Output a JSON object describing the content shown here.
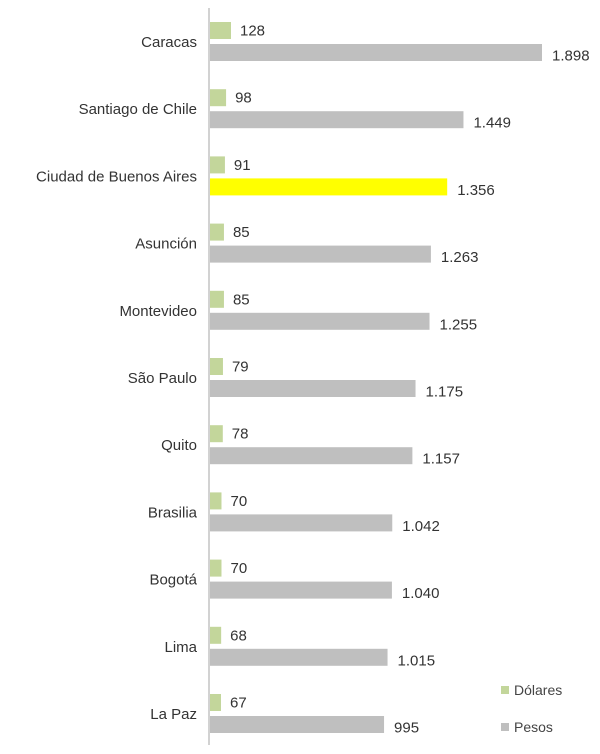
{
  "chart_data": {
    "type": "bar",
    "orientation": "horizontal",
    "categories": [
      "Caracas",
      "Santiago de Chile",
      "Ciudad de Buenos Aires",
      "Asunción",
      "Montevideo",
      "São Paulo",
      "Quito",
      "Brasilia",
      "Bogotá",
      "Lima",
      "La Paz"
    ],
    "series": [
      {
        "name": "Dólares",
        "color": "#c3d69b",
        "values": [
          128,
          98,
          91,
          85,
          85,
          79,
          78,
          70,
          70,
          68,
          67
        ],
        "labels": [
          "128",
          "98",
          "91",
          "85",
          "85",
          "79",
          "78",
          "70",
          "70",
          "68",
          "67"
        ]
      },
      {
        "name": "Pesos",
        "color": "#bfbfbf",
        "highlight_color": "#ffff00",
        "highlight_index": 2,
        "values": [
          1898,
          1449,
          1356,
          1263,
          1255,
          1175,
          1157,
          1042,
          1040,
          1015,
          995
        ],
        "labels": [
          "1.898",
          "1.449",
          "1.356",
          "1.263",
          "1.255",
          "1.175",
          "1.157",
          "1.042",
          "1.040",
          "1.015",
          "995"
        ]
      }
    ],
    "title": "",
    "xlabel": "",
    "ylabel": "",
    "grid": false,
    "legend": "bottom-right"
  }
}
